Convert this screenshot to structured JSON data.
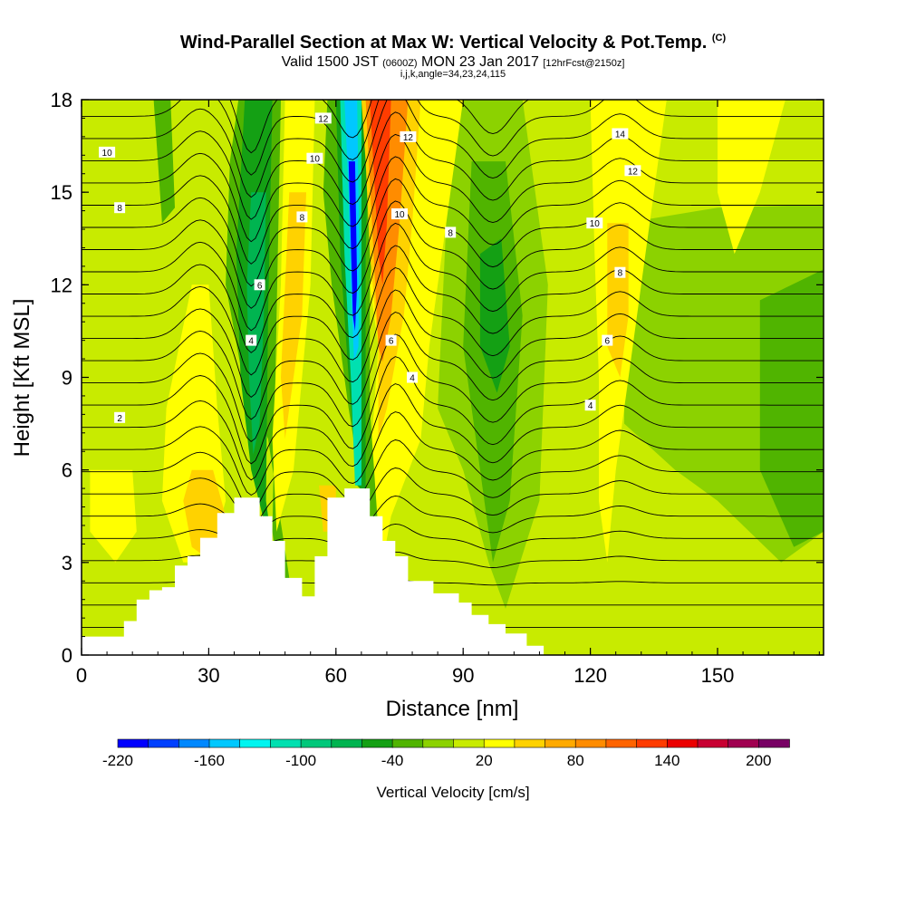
{
  "chart_data": {
    "type": "heatmap",
    "title": "Wind-Parallel Section at Max W: Vertical Velocity & Pot.Temp.",
    "copyright_mark": "(C)",
    "subtitle_a": "Valid 1500 JST",
    "subtitle_utc": "(0600Z)",
    "subtitle_b": "MON 23 Jan 2017",
    "subtitle_fcst": "[12hrFcst@2150z]",
    "subtitle2": "i,j,k,angle=34,23,24,115",
    "xlabel": "Distance [nm]",
    "ylabel": "Height [Kft MSL]",
    "xlim": [
      0,
      175
    ],
    "ylim": [
      0,
      18
    ],
    "xticks": [
      0,
      30,
      60,
      90,
      120,
      150
    ],
    "yticks": [
      0,
      3,
      6,
      9,
      12,
      15,
      18
    ],
    "colorbar": {
      "label": "Vertical Velocity [cm/s]",
      "ticks": [
        -220,
        -160,
        -100,
        -40,
        20,
        80,
        140,
        200
      ],
      "levels": [
        -220,
        -200,
        -180,
        -160,
        -140,
        -120,
        -100,
        -80,
        -60,
        -40,
        -20,
        0,
        20,
        40,
        60,
        80,
        100,
        120,
        140,
        160,
        180,
        200,
        220
      ],
      "colors": [
        "#0000ff",
        "#0040ff",
        "#0088ff",
        "#00c8ff",
        "#00f5f0",
        "#00e0b0",
        "#00c87a",
        "#00b450",
        "#14a014",
        "#50b400",
        "#8cd200",
        "#c8eb00",
        "#ffff00",
        "#ffd200",
        "#ffaa00",
        "#ff8c00",
        "#ff6400",
        "#ff3c00",
        "#eb0000",
        "#c80032",
        "#a00050",
        "#780064"
      ]
    },
    "velocity_features": [
      {
        "kind": "downdraft",
        "x_nm": 66,
        "height_kft": 12,
        "value": -200
      },
      {
        "kind": "downdraft",
        "x_nm": 42,
        "height_kft": 10,
        "value": -80
      },
      {
        "kind": "downdraft",
        "x_nm": 97,
        "height_kft": 11,
        "value": -60
      },
      {
        "kind": "updraft",
        "x_nm": 72,
        "height_kft": 15,
        "value": 140
      },
      {
        "kind": "updraft",
        "x_nm": 30,
        "height_kft": 5,
        "value": 60
      },
      {
        "kind": "updraft",
        "x_nm": 127,
        "height_kft": 12,
        "value": 60
      }
    ],
    "theta_contour_labels": [
      {
        "text": "10",
        "x_nm": 6,
        "height_kft": 16.3
      },
      {
        "text": "8",
        "x_nm": 9,
        "height_kft": 14.5
      },
      {
        "text": "2",
        "x_nm": 9,
        "height_kft": 7.7
      },
      {
        "text": "12",
        "x_nm": 57,
        "height_kft": 17.4
      },
      {
        "text": "10",
        "x_nm": 55,
        "height_kft": 16.1
      },
      {
        "text": "8",
        "x_nm": 52,
        "height_kft": 14.2
      },
      {
        "text": "6",
        "x_nm": 42,
        "height_kft": 12.0
      },
      {
        "text": "4",
        "x_nm": 40,
        "height_kft": 10.2
      },
      {
        "text": "12",
        "x_nm": 77,
        "height_kft": 16.8
      },
      {
        "text": "10",
        "x_nm": 75,
        "height_kft": 14.3
      },
      {
        "text": "8",
        "x_nm": 87,
        "height_kft": 13.7
      },
      {
        "text": "6",
        "x_nm": 73,
        "height_kft": 10.2
      },
      {
        "text": "4",
        "x_nm": 78,
        "height_kft": 9.0
      },
      {
        "text": "14",
        "x_nm": 127,
        "height_kft": 16.9
      },
      {
        "text": "12",
        "x_nm": 130,
        "height_kft": 15.7
      },
      {
        "text": "10",
        "x_nm": 121,
        "height_kft": 14.0
      },
      {
        "text": "8",
        "x_nm": 127,
        "height_kft": 12.4
      },
      {
        "text": "6",
        "x_nm": 124,
        "height_kft": 10.2
      },
      {
        "text": "4",
        "x_nm": 120,
        "height_kft": 8.1
      }
    ]
  }
}
